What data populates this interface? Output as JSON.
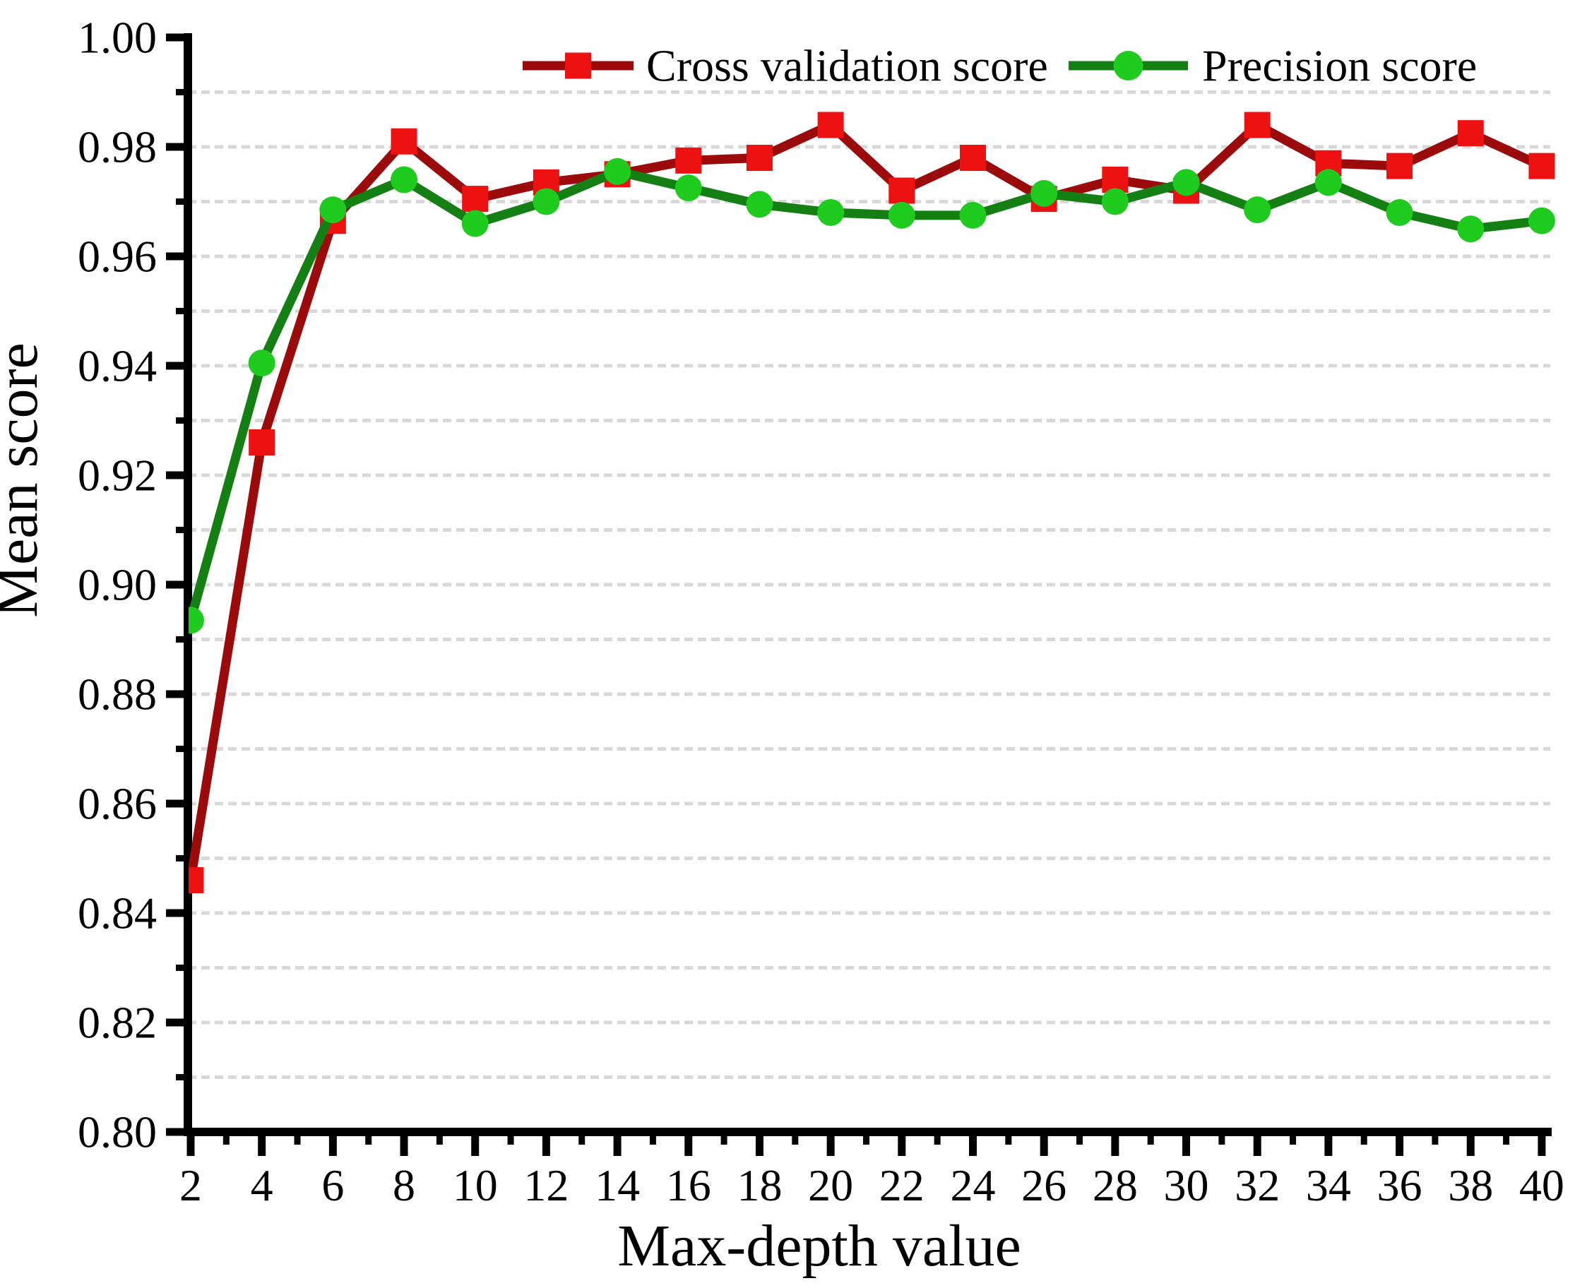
{
  "chart_data": {
    "type": "line",
    "title": "",
    "xlabel": "Max-depth value",
    "ylabel": "Mean score",
    "xlim": [
      1.9,
      40.4
    ],
    "ylim": [
      0.8,
      1.0
    ],
    "grid": "horizontal-dashed",
    "grid_color": "#d8d8d8",
    "axis_color": "#000000",
    "legend_position": "top-center",
    "x": [
      2,
      4,
      6,
      8,
      10,
      12,
      14,
      16,
      18,
      20,
      22,
      24,
      26,
      28,
      30,
      32,
      34,
      36,
      38,
      40
    ],
    "series": [
      {
        "name": "Cross validation score",
        "marker": "square",
        "marker_color": "#ee1111",
        "line_color": "#9b0b0b",
        "values": [
          0.846,
          0.926,
          0.9665,
          0.981,
          0.9705,
          0.9735,
          0.975,
          0.9775,
          0.978,
          0.984,
          0.972,
          0.978,
          0.9705,
          0.974,
          0.972,
          0.984,
          0.977,
          0.9765,
          0.9825,
          0.9765
        ]
      },
      {
        "name": "Precision score",
        "marker": "circle",
        "marker_color": "#1ecb1e",
        "line_color": "#148014",
        "values": [
          0.8935,
          0.9405,
          0.9685,
          0.974,
          0.966,
          0.97,
          0.9755,
          0.9725,
          0.9695,
          0.968,
          0.9675,
          0.9675,
          0.9715,
          0.97,
          0.9735,
          0.9685,
          0.9735,
          0.968,
          0.965,
          0.9665
        ]
      }
    ],
    "x_tick_values": [
      2,
      4,
      6,
      8,
      10,
      12,
      14,
      16,
      18,
      20,
      22,
      24,
      26,
      28,
      30,
      32,
      34,
      36,
      38,
      40
    ],
    "x_tick_labels": [
      "2",
      "4",
      "6",
      "8",
      "10",
      "12",
      "14",
      "16",
      "18",
      "20",
      "22",
      "24",
      "26",
      "28",
      "30",
      "32",
      "34",
      "36",
      "38",
      "40"
    ],
    "y_tick_values": [
      0.8,
      0.82,
      0.84,
      0.86,
      0.88,
      0.9,
      0.92,
      0.94,
      0.96,
      0.98,
      1.0
    ],
    "y_tick_labels": [
      "0.80",
      "0.82",
      "0.84",
      "0.86",
      "0.88",
      "0.90",
      "0.92",
      "0.94",
      "0.96",
      "0.98",
      "1.00"
    ]
  }
}
